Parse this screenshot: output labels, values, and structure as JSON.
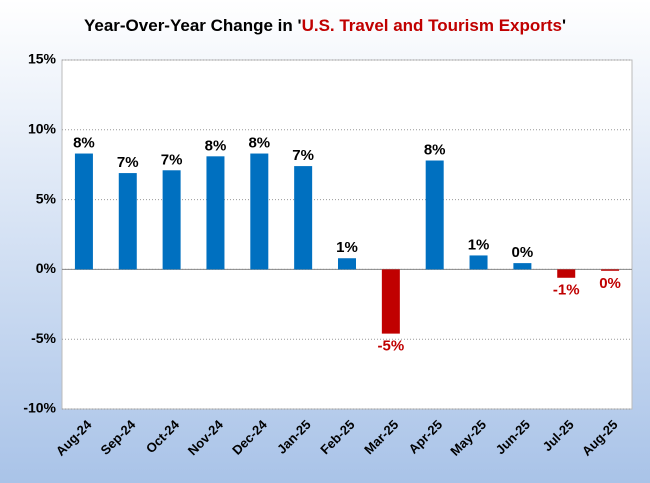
{
  "chart_data": {
    "type": "bar",
    "title": [
      "Year-Over-Year Change in '",
      "U.S. Travel and Tourism Exports",
      "'"
    ],
    "categories": [
      "Aug-24",
      "Sep-24",
      "Oct-24",
      "Nov-24",
      "Dec-24",
      "Jan-25",
      "Feb-25",
      "Mar-25",
      "Apr-25",
      "May-25",
      "Jun-25",
      "Jul-25",
      "Aug-25"
    ],
    "values": [
      8.3,
      6.9,
      7.1,
      8.1,
      8.3,
      7.4,
      0.8,
      -4.6,
      7.8,
      1.0,
      0.45,
      -0.6,
      -0.1
    ],
    "value_labels": [
      "8%",
      "7%",
      "7%",
      "8%",
      "8%",
      "7%",
      "1%",
      "-5%",
      "8%",
      "1%",
      "0%",
      "-1%",
      "0%"
    ],
    "color": "#0070c0",
    "negative_color": "#c00000",
    "title_highlight_color": "#c00000",
    "ylim": [
      -10,
      15
    ],
    "yticks": [
      {
        "value": -10,
        "label": "-10%"
      },
      {
        "value": -5,
        "label": "-5%"
      },
      {
        "value": 0,
        "label": "0%"
      },
      {
        "value": 5,
        "label": "5%"
      },
      {
        "value": 10,
        "label": "10%"
      },
      {
        "value": 15,
        "label": "15%"
      }
    ],
    "grid": true
  }
}
